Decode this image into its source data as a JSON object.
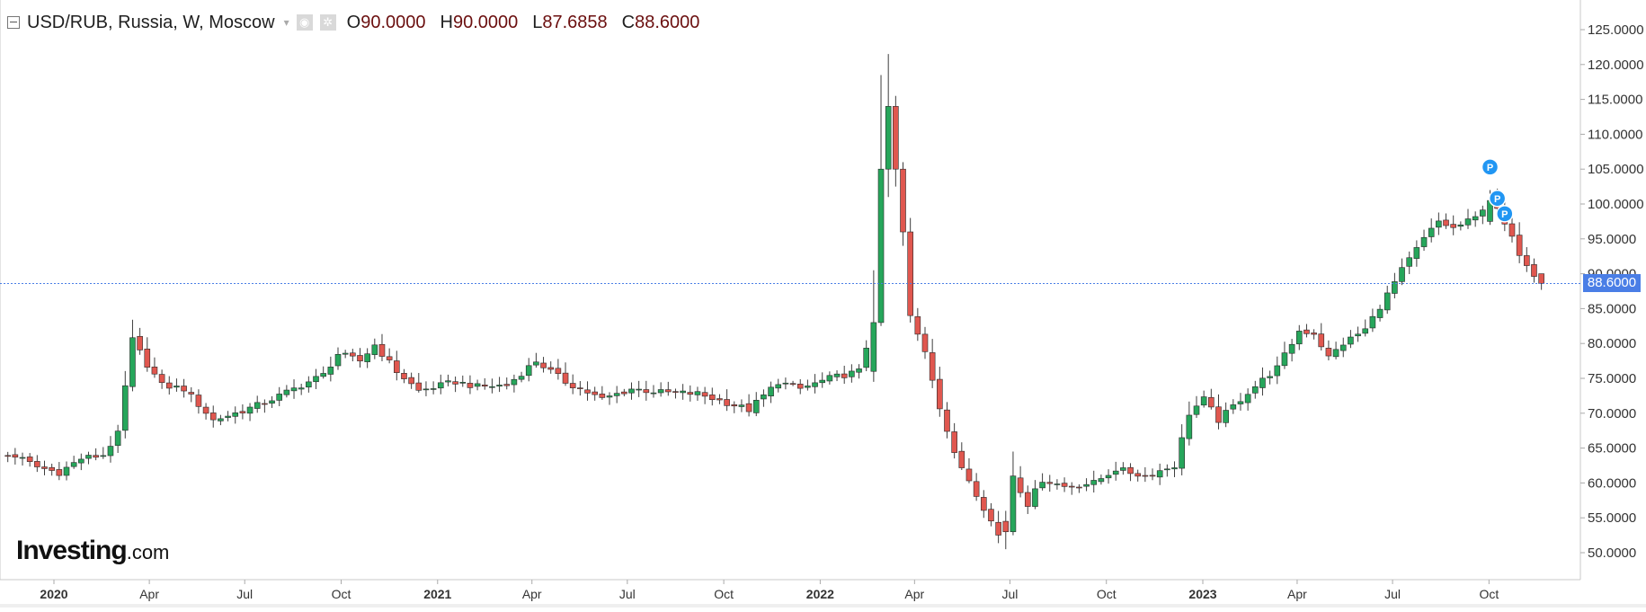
{
  "header": {
    "symbol": "USD/RUB, Russia, W, Moscow",
    "ohlc": [
      {
        "key": "O",
        "value": "90.0000"
      },
      {
        "key": "H",
        "value": "90.0000"
      },
      {
        "key": "L",
        "value": "87.6858"
      },
      {
        "key": "C",
        "value": "88.6000"
      }
    ],
    "icons": [
      "collapse-icon",
      "caret-down-icon",
      "eye-icon",
      "gear-icon"
    ]
  },
  "logo": {
    "brand": "Investing",
    "suffix": ".com"
  },
  "current_price_label": "88.6000",
  "colors": {
    "up": "#26a65b",
    "down": "#e0574f",
    "wick": "#3d3d3d",
    "price_line": "#4a7ee6",
    "marker": "#2196f3"
  },
  "chart_data": {
    "type": "candlestick",
    "title": "USD/RUB, Russia, W, Moscow",
    "ylim": [
      47.0,
      127.0
    ],
    "y_ticks": [
      "50.0000",
      "55.0000",
      "60.0000",
      "65.0000",
      "70.0000",
      "75.0000",
      "80.0000",
      "85.0000",
      "90.0000",
      "95.0000",
      "100.0000",
      "105.0000",
      "110.0000",
      "115.0000",
      "120.0000",
      "125.0000"
    ],
    "x_labels": [
      {
        "label": "2020",
        "bold": true,
        "date": "2020-01-01"
      },
      {
        "label": "Apr",
        "bold": false,
        "date": "2020-04-01"
      },
      {
        "label": "Jul",
        "bold": false,
        "date": "2020-07-01"
      },
      {
        "label": "Oct",
        "bold": false,
        "date": "2020-10-01"
      },
      {
        "label": "2021",
        "bold": true,
        "date": "2021-01-01"
      },
      {
        "label": "Apr",
        "bold": false,
        "date": "2021-04-01"
      },
      {
        "label": "Jul",
        "bold": false,
        "date": "2021-07-01"
      },
      {
        "label": "Oct",
        "bold": false,
        "date": "2021-10-01"
      },
      {
        "label": "2022",
        "bold": true,
        "date": "2022-01-01"
      },
      {
        "label": "Apr",
        "bold": false,
        "date": "2022-04-01"
      },
      {
        "label": "Jul",
        "bold": false,
        "date": "2022-07-01"
      },
      {
        "label": "Oct",
        "bold": false,
        "date": "2022-10-01"
      },
      {
        "label": "2023",
        "bold": true,
        "date": "2023-01-01"
      },
      {
        "label": "Apr",
        "bold": false,
        "date": "2023-04-01"
      },
      {
        "label": "Jul",
        "bold": false,
        "date": "2023-07-01"
      },
      {
        "label": "Oct",
        "bold": false,
        "date": "2023-10-01"
      }
    ],
    "last_price": 88.6,
    "markers": [
      {
        "label": "P",
        "date": "2023-10-02",
        "price": 105.3
      },
      {
        "label": "P",
        "date": "2023-10-09",
        "price": 100.8
      },
      {
        "label": "P",
        "date": "2023-10-16",
        "price": 98.6
      }
    ],
    "close_path": [
      [
        "2019-10-28",
        64.0
      ],
      [
        "2019-11-25",
        63.9
      ],
      [
        "2019-12-16",
        62.3
      ],
      [
        "2020-01-06",
        61.5
      ],
      [
        "2020-01-27",
        63.5
      ],
      [
        "2020-02-17",
        64.0
      ],
      [
        "2020-03-02",
        67.0
      ],
      [
        "2020-03-16",
        80.5
      ],
      [
        "2020-03-30",
        77.0
      ],
      [
        "2020-04-13",
        74.0
      ],
      [
        "2020-05-04",
        73.5
      ],
      [
        "2020-06-01",
        69.0
      ],
      [
        "2020-06-22",
        70.0
      ],
      [
        "2020-07-20",
        71.5
      ],
      [
        "2020-08-17",
        73.5
      ],
      [
        "2020-09-14",
        75.5
      ],
      [
        "2020-09-28",
        78.5
      ],
      [
        "2020-10-19",
        77.5
      ],
      [
        "2020-11-02",
        79.8
      ],
      [
        "2020-11-23",
        76.0
      ],
      [
        "2020-12-14",
        73.2
      ],
      [
        "2021-01-18",
        74.5
      ],
      [
        "2021-02-08",
        73.8
      ],
      [
        "2021-03-08",
        74.0
      ],
      [
        "2021-04-05",
        77.5
      ],
      [
        "2021-05-03",
        74.5
      ],
      [
        "2021-06-07",
        72.0
      ],
      [
        "2021-07-05",
        73.5
      ],
      [
        "2021-08-02",
        73.0
      ],
      [
        "2021-09-06",
        72.8
      ],
      [
        "2021-10-04",
        71.5
      ],
      [
        "2021-10-25",
        70.5
      ],
      [
        "2021-11-22",
        74.5
      ],
      [
        "2021-12-13",
        73.5
      ],
      [
        "2022-01-10",
        75.0
      ],
      [
        "2022-02-07",
        76.0
      ],
      [
        "2022-02-21",
        83.0
      ],
      [
        "2022-02-28",
        105.0
      ],
      [
        "2022-03-07",
        114.0
      ],
      [
        "2022-03-14",
        105.0
      ],
      [
        "2022-03-21",
        96.0
      ],
      [
        "2022-03-28",
        83.5
      ],
      [
        "2022-04-11",
        79.0
      ],
      [
        "2022-04-25",
        71.0
      ],
      [
        "2022-05-09",
        64.0
      ],
      [
        "2022-05-23",
        60.5
      ],
      [
        "2022-06-06",
        56.5
      ],
      [
        "2022-06-20",
        52.5
      ],
      [
        "2022-07-04",
        61.0
      ],
      [
        "2022-07-18",
        57.0
      ],
      [
        "2022-08-01",
        60.5
      ],
      [
        "2022-08-22",
        59.5
      ],
      [
        "2022-09-19",
        60.0
      ],
      [
        "2022-10-10",
        62.0
      ],
      [
        "2022-11-07",
        61.0
      ],
      [
        "2022-12-05",
        62.5
      ],
      [
        "2022-12-19",
        70.0
      ],
      [
        "2023-01-02",
        72.0
      ],
      [
        "2023-01-16",
        69.0
      ],
      [
        "2023-02-13",
        73.0
      ],
      [
        "2023-03-13",
        76.5
      ],
      [
        "2023-04-03",
        81.8
      ],
      [
        "2023-04-17",
        81.5
      ],
      [
        "2023-05-01",
        78.0
      ],
      [
        "2023-05-15",
        80.0
      ],
      [
        "2023-06-05",
        82.0
      ],
      [
        "2023-06-26",
        87.0
      ],
      [
        "2023-07-10",
        90.5
      ],
      [
        "2023-07-31",
        95.0
      ],
      [
        "2023-08-14",
        97.5
      ],
      [
        "2023-08-28",
        96.5
      ],
      [
        "2023-09-18",
        98.0
      ],
      [
        "2023-10-02",
        101.0
      ],
      [
        "2023-10-16",
        97.0
      ],
      [
        "2023-10-30",
        93.0
      ],
      [
        "2023-11-13",
        90.0
      ],
      [
        "2023-11-20",
        88.6
      ]
    ]
  }
}
